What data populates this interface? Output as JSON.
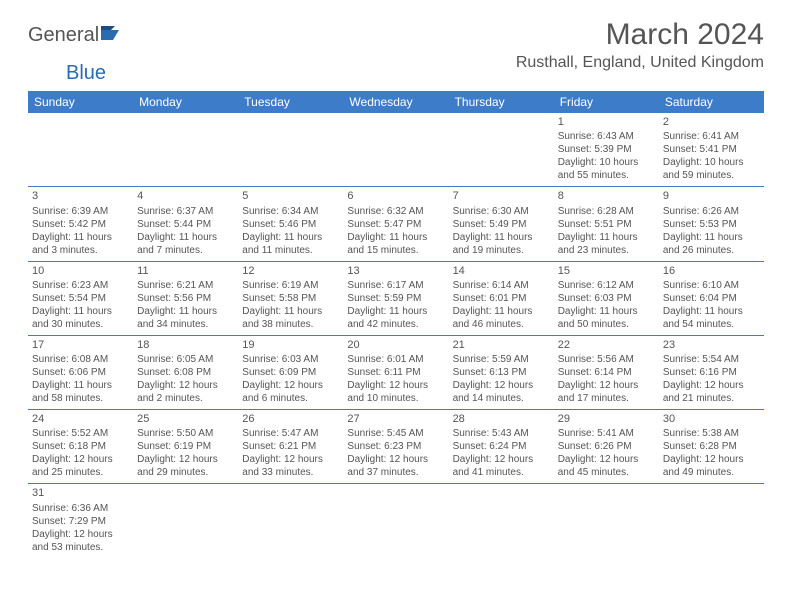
{
  "logo": {
    "text1": "General",
    "text2": "Blue"
  },
  "title": "March 2024",
  "location": "Rusthall, England, United Kingdom",
  "colors": {
    "header_bg": "#3d7cc9",
    "header_text": "#ffffff",
    "text": "#555555",
    "row_border": "#3d7cc9",
    "logo_blue": "#2a6cb0"
  },
  "days": [
    "Sunday",
    "Monday",
    "Tuesday",
    "Wednesday",
    "Thursday",
    "Friday",
    "Saturday"
  ],
  "weeks": [
    [
      null,
      null,
      null,
      null,
      null,
      {
        "n": "1",
        "sr": "Sunrise: 6:43 AM",
        "ss": "Sunset: 5:39 PM",
        "dl": "Daylight: 10 hours and 55 minutes."
      },
      {
        "n": "2",
        "sr": "Sunrise: 6:41 AM",
        "ss": "Sunset: 5:41 PM",
        "dl": "Daylight: 10 hours and 59 minutes."
      }
    ],
    [
      {
        "n": "3",
        "sr": "Sunrise: 6:39 AM",
        "ss": "Sunset: 5:42 PM",
        "dl": "Daylight: 11 hours and 3 minutes."
      },
      {
        "n": "4",
        "sr": "Sunrise: 6:37 AM",
        "ss": "Sunset: 5:44 PM",
        "dl": "Daylight: 11 hours and 7 minutes."
      },
      {
        "n": "5",
        "sr": "Sunrise: 6:34 AM",
        "ss": "Sunset: 5:46 PM",
        "dl": "Daylight: 11 hours and 11 minutes."
      },
      {
        "n": "6",
        "sr": "Sunrise: 6:32 AM",
        "ss": "Sunset: 5:47 PM",
        "dl": "Daylight: 11 hours and 15 minutes."
      },
      {
        "n": "7",
        "sr": "Sunrise: 6:30 AM",
        "ss": "Sunset: 5:49 PM",
        "dl": "Daylight: 11 hours and 19 minutes."
      },
      {
        "n": "8",
        "sr": "Sunrise: 6:28 AM",
        "ss": "Sunset: 5:51 PM",
        "dl": "Daylight: 11 hours and 23 minutes."
      },
      {
        "n": "9",
        "sr": "Sunrise: 6:26 AM",
        "ss": "Sunset: 5:53 PM",
        "dl": "Daylight: 11 hours and 26 minutes."
      }
    ],
    [
      {
        "n": "10",
        "sr": "Sunrise: 6:23 AM",
        "ss": "Sunset: 5:54 PM",
        "dl": "Daylight: 11 hours and 30 minutes."
      },
      {
        "n": "11",
        "sr": "Sunrise: 6:21 AM",
        "ss": "Sunset: 5:56 PM",
        "dl": "Daylight: 11 hours and 34 minutes."
      },
      {
        "n": "12",
        "sr": "Sunrise: 6:19 AM",
        "ss": "Sunset: 5:58 PM",
        "dl": "Daylight: 11 hours and 38 minutes."
      },
      {
        "n": "13",
        "sr": "Sunrise: 6:17 AM",
        "ss": "Sunset: 5:59 PM",
        "dl": "Daylight: 11 hours and 42 minutes."
      },
      {
        "n": "14",
        "sr": "Sunrise: 6:14 AM",
        "ss": "Sunset: 6:01 PM",
        "dl": "Daylight: 11 hours and 46 minutes."
      },
      {
        "n": "15",
        "sr": "Sunrise: 6:12 AM",
        "ss": "Sunset: 6:03 PM",
        "dl": "Daylight: 11 hours and 50 minutes."
      },
      {
        "n": "16",
        "sr": "Sunrise: 6:10 AM",
        "ss": "Sunset: 6:04 PM",
        "dl": "Daylight: 11 hours and 54 minutes."
      }
    ],
    [
      {
        "n": "17",
        "sr": "Sunrise: 6:08 AM",
        "ss": "Sunset: 6:06 PM",
        "dl": "Daylight: 11 hours and 58 minutes."
      },
      {
        "n": "18",
        "sr": "Sunrise: 6:05 AM",
        "ss": "Sunset: 6:08 PM",
        "dl": "Daylight: 12 hours and 2 minutes."
      },
      {
        "n": "19",
        "sr": "Sunrise: 6:03 AM",
        "ss": "Sunset: 6:09 PM",
        "dl": "Daylight: 12 hours and 6 minutes."
      },
      {
        "n": "20",
        "sr": "Sunrise: 6:01 AM",
        "ss": "Sunset: 6:11 PM",
        "dl": "Daylight: 12 hours and 10 minutes."
      },
      {
        "n": "21",
        "sr": "Sunrise: 5:59 AM",
        "ss": "Sunset: 6:13 PM",
        "dl": "Daylight: 12 hours and 14 minutes."
      },
      {
        "n": "22",
        "sr": "Sunrise: 5:56 AM",
        "ss": "Sunset: 6:14 PM",
        "dl": "Daylight: 12 hours and 17 minutes."
      },
      {
        "n": "23",
        "sr": "Sunrise: 5:54 AM",
        "ss": "Sunset: 6:16 PM",
        "dl": "Daylight: 12 hours and 21 minutes."
      }
    ],
    [
      {
        "n": "24",
        "sr": "Sunrise: 5:52 AM",
        "ss": "Sunset: 6:18 PM",
        "dl": "Daylight: 12 hours and 25 minutes."
      },
      {
        "n": "25",
        "sr": "Sunrise: 5:50 AM",
        "ss": "Sunset: 6:19 PM",
        "dl": "Daylight: 12 hours and 29 minutes."
      },
      {
        "n": "26",
        "sr": "Sunrise: 5:47 AM",
        "ss": "Sunset: 6:21 PM",
        "dl": "Daylight: 12 hours and 33 minutes."
      },
      {
        "n": "27",
        "sr": "Sunrise: 5:45 AM",
        "ss": "Sunset: 6:23 PM",
        "dl": "Daylight: 12 hours and 37 minutes."
      },
      {
        "n": "28",
        "sr": "Sunrise: 5:43 AM",
        "ss": "Sunset: 6:24 PM",
        "dl": "Daylight: 12 hours and 41 minutes."
      },
      {
        "n": "29",
        "sr": "Sunrise: 5:41 AM",
        "ss": "Sunset: 6:26 PM",
        "dl": "Daylight: 12 hours and 45 minutes."
      },
      {
        "n": "30",
        "sr": "Sunrise: 5:38 AM",
        "ss": "Sunset: 6:28 PM",
        "dl": "Daylight: 12 hours and 49 minutes."
      }
    ],
    [
      {
        "n": "31",
        "sr": "Sunrise: 6:36 AM",
        "ss": "Sunset: 7:29 PM",
        "dl": "Daylight: 12 hours and 53 minutes."
      },
      null,
      null,
      null,
      null,
      null,
      null
    ]
  ]
}
